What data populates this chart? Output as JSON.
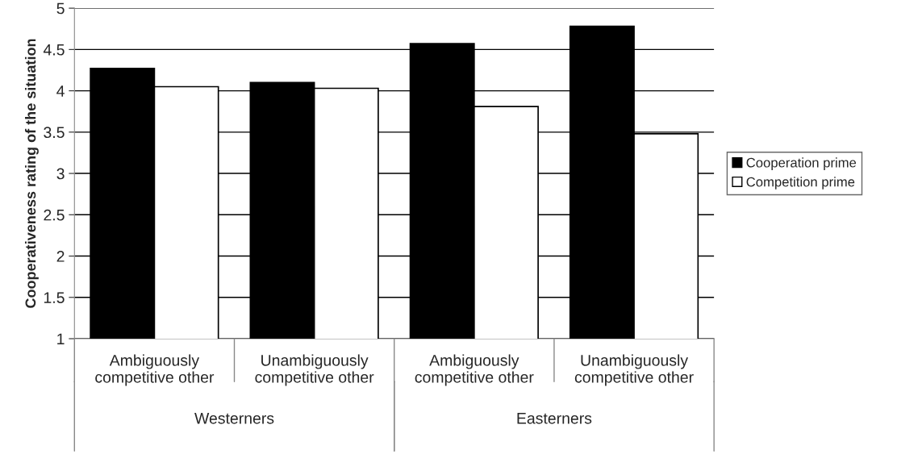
{
  "chart_data": {
    "type": "bar",
    "ylabel": "Cooperativeness rating of the situation",
    "categories": [
      "Ambiguously\ncompetitive other",
      "Unambiguously\ncompetitive other",
      "Ambiguously\ncompetitive other",
      "Unambiguously\ncompetitive other"
    ],
    "series": [
      {
        "name": "Cooperation prime",
        "color": "#000000",
        "values": [
          4.27,
          4.1,
          4.57,
          4.78
        ]
      },
      {
        "name": "Competition prime",
        "color": "#ffffff",
        "values": [
          4.05,
          4.03,
          3.81,
          3.48
        ]
      }
    ],
    "ylim": [
      1,
      5
    ],
    "yticks": [
      1,
      1.5,
      2,
      2.5,
      3,
      3.5,
      4,
      4.5,
      5
    ],
    "grid": "y",
    "legend": "right",
    "annotations": [
      "Westerners",
      "Easterners"
    ]
  }
}
